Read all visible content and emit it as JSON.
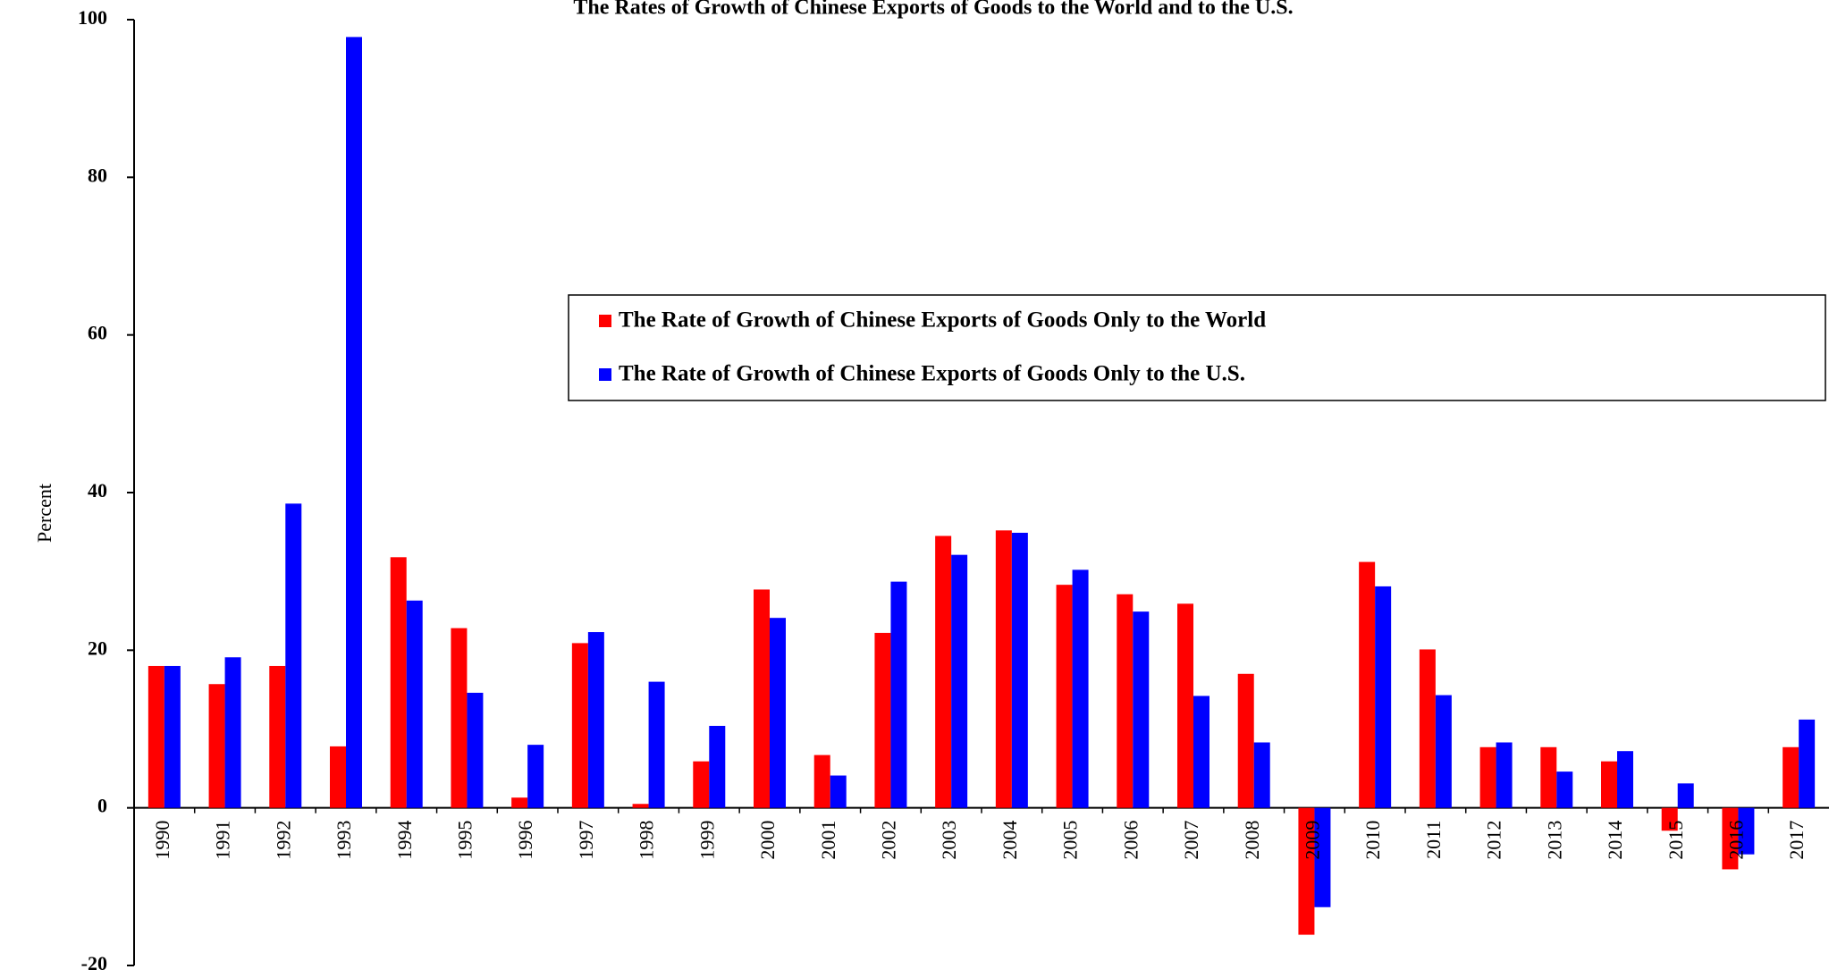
{
  "chart_data": {
    "type": "bar",
    "title": "The Rates of Growth of Chinese Exports of Goods to the World and to the U.S.",
    "y_label": "Percent",
    "categories": [
      "1990",
      "1991",
      "1992",
      "1993",
      "1994",
      "1995",
      "1996",
      "1997",
      "1998",
      "1999",
      "2000",
      "2001",
      "2002",
      "2003",
      "2004",
      "2005",
      "2006",
      "2007",
      "2008",
      "2009",
      "2010",
      "2011",
      "2012",
      "2013",
      "2014",
      "2015",
      "2016",
      "2017"
    ],
    "series": [
      {
        "name": "The Rate of Growth of Chinese Exports of Goods Only to the World",
        "color": "#ff0000",
        "values": [
          18.0,
          15.7,
          18.0,
          7.8,
          31.8,
          22.8,
          1.3,
          20.9,
          0.5,
          5.9,
          27.7,
          6.7,
          22.2,
          34.5,
          35.2,
          28.3,
          27.1,
          25.9,
          17.0,
          -16.1,
          31.2,
          20.1,
          7.7,
          7.7,
          5.9,
          -2.9,
          -7.8,
          7.7
        ]
      },
      {
        "name": "The Rate of Growth of Chinese Exports of Goods Only to the U.S.",
        "color": "#0000ff",
        "values": [
          18.0,
          19.1,
          38.6,
          97.8,
          26.3,
          14.6,
          8.0,
          22.3,
          16.0,
          10.4,
          24.1,
          4.1,
          28.7,
          32.1,
          34.9,
          30.2,
          24.9,
          14.2,
          8.3,
          -12.6,
          28.1,
          14.3,
          8.3,
          4.6,
          7.2,
          3.1,
          -5.9,
          11.2
        ]
      }
    ],
    "ylim": [
      -20,
      100
    ],
    "yticks": [
      -20,
      0,
      20,
      40,
      60,
      80,
      100
    ],
    "grid": false
  }
}
